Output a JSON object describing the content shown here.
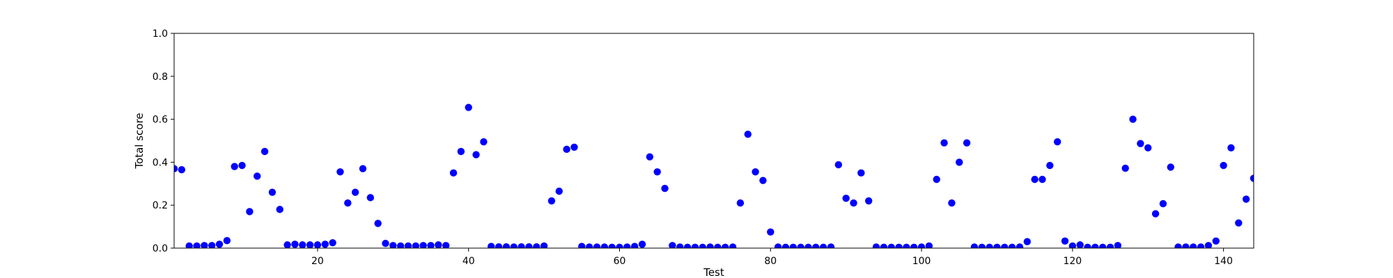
{
  "chart_data": {
    "type": "scatter",
    "title": "",
    "xlabel": "Test",
    "ylabel": "Total score",
    "xlim": [
      1,
      144
    ],
    "ylim": [
      0.0,
      1.0
    ],
    "grid": false,
    "legend": "none",
    "x_ticks": [
      20,
      40,
      60,
      80,
      100,
      120,
      140
    ],
    "y_ticks": [
      0.0,
      0.2,
      0.4,
      0.6,
      0.8,
      1.0
    ],
    "marker_color": "#0000ff",
    "series": [
      {
        "x": [
          1,
          2,
          3,
          4,
          5,
          6,
          7,
          8,
          9,
          10,
          11,
          12,
          13,
          14,
          15,
          16,
          17,
          18,
          19,
          20,
          21,
          22,
          23,
          24,
          25,
          26,
          27,
          28,
          29,
          30,
          31,
          32,
          33,
          34,
          35,
          36,
          37,
          38,
          39,
          40,
          41,
          42,
          43,
          44,
          45,
          46,
          47,
          48,
          49,
          50,
          51,
          52,
          53,
          54,
          55,
          56,
          57,
          58,
          59,
          60,
          61,
          62,
          63,
          64,
          65,
          66,
          67,
          68,
          69,
          70,
          71,
          72,
          73,
          74,
          75,
          76,
          77,
          78,
          79,
          80,
          81,
          82,
          83,
          84,
          85,
          86,
          87,
          88,
          89,
          90,
          91,
          92,
          93,
          94,
          95,
          96,
          97,
          98,
          99,
          100,
          101,
          102,
          103,
          104,
          105,
          106,
          107,
          108,
          109,
          110,
          111,
          112,
          113,
          114,
          115,
          116,
          117,
          118,
          119,
          120,
          121,
          122,
          123,
          124,
          125,
          126,
          127,
          128,
          129,
          130,
          131,
          132,
          133,
          134,
          135,
          136,
          137,
          138,
          139,
          140,
          141,
          142,
          143,
          144
        ],
        "y": [
          0.37,
          0.365,
          0.01,
          0.01,
          0.012,
          0.012,
          0.018,
          0.035,
          0.38,
          0.385,
          0.17,
          0.335,
          0.45,
          0.26,
          0.18,
          0.015,
          0.018,
          0.015,
          0.015,
          0.015,
          0.018,
          0.025,
          0.355,
          0.21,
          0.26,
          0.37,
          0.235,
          0.115,
          0.022,
          0.012,
          0.01,
          0.01,
          0.01,
          0.012,
          0.012,
          0.015,
          0.012,
          0.35,
          0.45,
          0.655,
          0.435,
          0.495,
          0.008,
          0.006,
          0.006,
          0.005,
          0.006,
          0.006,
          0.006,
          0.01,
          0.22,
          0.265,
          0.46,
          0.47,
          0.008,
          0.005,
          0.005,
          0.005,
          0.004,
          0.004,
          0.005,
          0.008,
          0.018,
          0.425,
          0.355,
          0.278,
          0.012,
          0.005,
          0.004,
          0.004,
          0.004,
          0.005,
          0.004,
          0.004,
          0.005,
          0.21,
          0.53,
          0.355,
          0.315,
          0.075,
          0.005,
          0.004,
          0.004,
          0.004,
          0.004,
          0.004,
          0.004,
          0.005,
          0.388,
          0.232,
          0.21,
          0.35,
          0.22,
          0.005,
          0.004,
          0.004,
          0.004,
          0.004,
          0.004,
          0.005,
          0.01,
          0.32,
          0.49,
          0.21,
          0.4,
          0.49,
          0.005,
          0.004,
          0.004,
          0.004,
          0.004,
          0.004,
          0.005,
          0.03,
          0.32,
          0.32,
          0.385,
          0.495,
          0.033,
          0.01,
          0.015,
          0.004,
          0.004,
          0.004,
          0.004,
          0.012,
          0.372,
          0.6,
          0.487,
          0.467,
          0.16,
          0.207,
          0.377,
          0.005,
          0.005,
          0.005,
          0.005,
          0.012,
          0.033,
          0.385,
          0.467,
          0.117,
          0.228,
          0.325
        ]
      }
    ]
  }
}
